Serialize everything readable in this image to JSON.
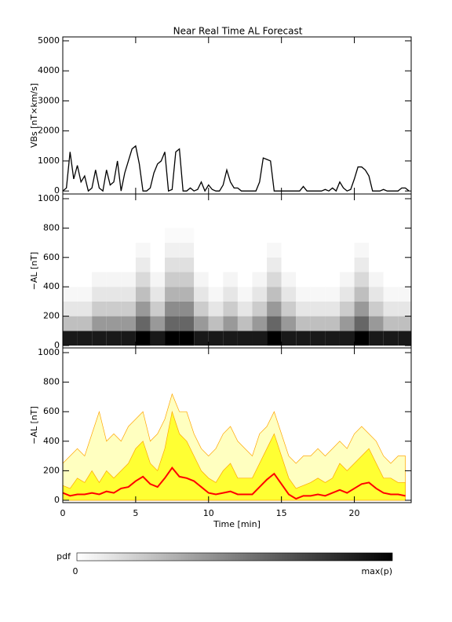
{
  "title": "Near Real Time AL Forecast",
  "chart_data": [
    {
      "type": "line",
      "ylabel": "VBs [nT×km/s]",
      "color": "#000000",
      "x": [
        0,
        0.25,
        0.5,
        0.75,
        1,
        1.25,
        1.5,
        1.75,
        2,
        2.25,
        2.5,
        2.75,
        3,
        3.25,
        3.5,
        3.75,
        4,
        4.25,
        4.5,
        4.75,
        5,
        5.25,
        5.5,
        5.75,
        6,
        6.25,
        6.5,
        6.75,
        7,
        7.25,
        7.5,
        7.75,
        8,
        8.25,
        8.5,
        8.75,
        9,
        9.25,
        9.5,
        9.75,
        10,
        10.25,
        10.5,
        10.75,
        11,
        11.25,
        11.5,
        11.75,
        12,
        12.25,
        12.5,
        12.75,
        13,
        13.25,
        13.5,
        13.75,
        14,
        14.25,
        14.5,
        14.75,
        15,
        15.25,
        15.5,
        15.75,
        16,
        16.25,
        16.5,
        16.75,
        17,
        17.25,
        17.5,
        17.75,
        18,
        18.25,
        18.5,
        18.75,
        19,
        19.25,
        19.5,
        19.75,
        20,
        20.25,
        20.5,
        20.75,
        21,
        21.25,
        21.5,
        21.75,
        22,
        22.25,
        22.5,
        22.75,
        23,
        23.25,
        23.5,
        23.75
      ],
      "values": [
        0,
        100,
        1300,
        400,
        850,
        300,
        500,
        0,
        100,
        700,
        100,
        0,
        700,
        200,
        300,
        1000,
        0,
        600,
        1000,
        1400,
        1500,
        900,
        0,
        0,
        100,
        600,
        900,
        1000,
        1300,
        0,
        50,
        1300,
        1400,
        0,
        0,
        100,
        0,
        50,
        300,
        0,
        200,
        50,
        0,
        0,
        200,
        700,
        300,
        100,
        100,
        0,
        0,
        0,
        0,
        0,
        300,
        1100,
        1050,
        1000,
        0,
        0,
        0,
        0,
        0,
        0,
        0,
        0,
        150,
        0,
        0,
        0,
        0,
        0,
        50,
        0,
        100,
        0,
        300,
        100,
        0,
        50,
        400,
        800,
        800,
        700,
        500,
        0,
        0,
        0,
        50,
        0,
        0,
        0,
        0,
        100,
        100,
        0
      ],
      "xlim": [
        0,
        23.9
      ],
      "ylim": [
        -100,
        5130
      ],
      "xticks": [
        0,
        5,
        10,
        15,
        20
      ],
      "yticks": [
        0,
        1000,
        2000,
        3000,
        4000,
        5000
      ]
    },
    {
      "type": "heatmap",
      "ylabel": "−AL [nT]",
      "x_bins": [
        0,
        1,
        2,
        3,
        4,
        5,
        6,
        7,
        8,
        9,
        10,
        11,
        12,
        13,
        14,
        15,
        16,
        17,
        18,
        19,
        20,
        21,
        22,
        23,
        24
      ],
      "y_bins": [
        0,
        100,
        200,
        300,
        400,
        500,
        600,
        700,
        800
      ],
      "z": [
        [
          0.9,
          0.25,
          0.1,
          0.03,
          0,
          0,
          0,
          0
        ],
        [
          0.9,
          0.25,
          0.1,
          0.03,
          0,
          0,
          0,
          0
        ],
        [
          0.9,
          0.4,
          0.2,
          0.1,
          0.04,
          0,
          0,
          0
        ],
        [
          0.9,
          0.4,
          0.2,
          0.1,
          0.04,
          0,
          0,
          0
        ],
        [
          0.9,
          0.4,
          0.2,
          0.1,
          0.04,
          0,
          0,
          0
        ],
        [
          1,
          0.6,
          0.4,
          0.25,
          0.15,
          0.08,
          0.03,
          0
        ],
        [
          0.9,
          0.4,
          0.2,
          0.1,
          0.04,
          0,
          0,
          0
        ],
        [
          1,
          0.6,
          0.45,
          0.3,
          0.2,
          0.12,
          0.06,
          0.02
        ],
        [
          1,
          0.6,
          0.45,
          0.3,
          0.2,
          0.12,
          0.06,
          0.02
        ],
        [
          0.9,
          0.4,
          0.2,
          0.1,
          0.04,
          0,
          0,
          0
        ],
        [
          0.9,
          0.25,
          0.1,
          0.03,
          0,
          0,
          0,
          0
        ],
        [
          0.9,
          0.4,
          0.2,
          0.1,
          0.04,
          0,
          0,
          0
        ],
        [
          0.9,
          0.25,
          0.1,
          0.03,
          0,
          0,
          0,
          0
        ],
        [
          0.9,
          0.4,
          0.2,
          0.1,
          0.04,
          0,
          0,
          0
        ],
        [
          1,
          0.6,
          0.4,
          0.25,
          0.15,
          0.08,
          0.03,
          0
        ],
        [
          0.9,
          0.4,
          0.2,
          0.1,
          0.04,
          0,
          0,
          0
        ],
        [
          0.9,
          0.25,
          0.1,
          0.03,
          0,
          0,
          0,
          0
        ],
        [
          0.9,
          0.25,
          0.1,
          0.03,
          0,
          0,
          0,
          0
        ],
        [
          0.9,
          0.25,
          0.1,
          0.03,
          0,
          0,
          0,
          0
        ],
        [
          0.9,
          0.4,
          0.2,
          0.1,
          0.04,
          0,
          0,
          0
        ],
        [
          1,
          0.6,
          0.4,
          0.25,
          0.15,
          0.08,
          0.03,
          0
        ],
        [
          0.9,
          0.4,
          0.2,
          0.1,
          0.04,
          0,
          0,
          0
        ],
        [
          0.9,
          0.25,
          0.1,
          0.03,
          0,
          0,
          0,
          0
        ],
        [
          0.9,
          0.25,
          0.1,
          0.03,
          0,
          0,
          0,
          0
        ]
      ],
      "xlim": [
        0,
        23.9
      ],
      "ylim": [
        -16,
        1032
      ],
      "xticks": [
        0,
        5,
        10,
        15,
        20
      ],
      "yticks": [
        0,
        200,
        400,
        600,
        800,
        1000
      ]
    },
    {
      "type": "area",
      "ylabel": "−AL [nT]",
      "xlabel": "Time [min]",
      "edge_color": "#ffa500",
      "x": [
        0,
        0.5,
        1,
        1.5,
        2,
        2.5,
        3,
        3.5,
        4,
        4.5,
        5,
        5.5,
        6,
        6.5,
        7,
        7.5,
        8,
        8.5,
        9,
        9.5,
        10,
        10.5,
        11,
        11.5,
        12,
        12.5,
        13,
        13.5,
        14,
        14.5,
        15,
        15.5,
        16,
        16.5,
        17,
        17.5,
        18,
        18.5,
        19,
        19.5,
        20,
        20.5,
        21,
        21.5,
        22,
        22.5,
        23,
        23.5
      ],
      "series": [
        {
          "color": "#ffffc0",
          "values": [
            250,
            300,
            350,
            300,
            450,
            600,
            400,
            450,
            400,
            500,
            550,
            600,
            400,
            450,
            550,
            720,
            600,
            600,
            450,
            350,
            300,
            350,
            450,
            500,
            400,
            350,
            300,
            450,
            500,
            600,
            450,
            300,
            250,
            300,
            300,
            350,
            300,
            350,
            400,
            350,
            450,
            500,
            450,
            400,
            300,
            250,
            300,
            300
          ]
        },
        {
          "color": "#ffff33",
          "values": [
            100,
            80,
            150,
            120,
            200,
            120,
            200,
            150,
            200,
            250,
            350,
            400,
            250,
            200,
            350,
            600,
            450,
            400,
            300,
            200,
            150,
            120,
            200,
            250,
            150,
            150,
            150,
            250,
            350,
            450,
            300,
            150,
            80,
            100,
            120,
            150,
            120,
            150,
            250,
            200,
            250,
            300,
            350,
            250,
            150,
            150,
            120,
            120
          ]
        },
        {
          "color": "#ff0000",
          "values": [
            50,
            30,
            40,
            40,
            50,
            40,
            60,
            50,
            80,
            90,
            130,
            160,
            110,
            90,
            150,
            220,
            160,
            150,
            130,
            90,
            50,
            40,
            50,
            60,
            40,
            40,
            40,
            90,
            140,
            180,
            110,
            40,
            10,
            30,
            30,
            40,
            30,
            50,
            70,
            50,
            80,
            110,
            120,
            80,
            50,
            40,
            40,
            30
          ]
        }
      ],
      "xlim": [
        0,
        23.9
      ],
      "ylim": [
        -16,
        1032
      ],
      "xticks": [
        0,
        5,
        10,
        15,
        20
      ],
      "yticks": [
        0,
        200,
        400,
        600,
        800,
        1000
      ]
    }
  ],
  "colorbar": {
    "label": "pdf",
    "min_label": "0",
    "max_label": "max(p)"
  }
}
